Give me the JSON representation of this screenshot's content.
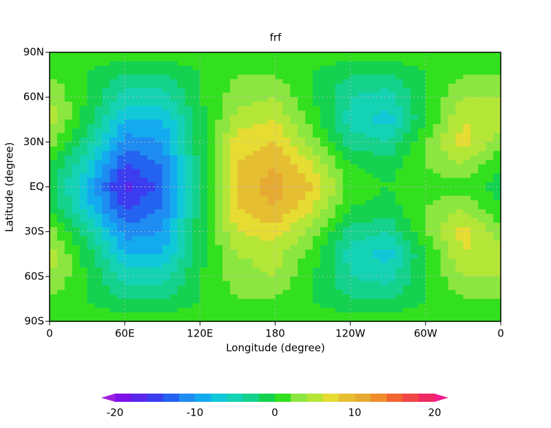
{
  "chart_data": {
    "type": "contour",
    "title": "frf",
    "x_label": "Longitude (degree)",
    "y_label": "Latitude (degree)",
    "x": [
      0,
      30,
      60,
      90,
      120,
      150,
      180,
      210,
      240,
      270,
      300,
      330,
      360
    ],
    "y": [
      90,
      75,
      60,
      45,
      30,
      15,
      0,
      -15,
      -30,
      -45,
      -60,
      -75,
      -90
    ],
    "z": [
      [
        1,
        1,
        1,
        1,
        1,
        1,
        1,
        1,
        1,
        1,
        1,
        1,
        1
      ],
      [
        2,
        0,
        -2,
        -2,
        0,
        2,
        2,
        0,
        -2,
        -2,
        0,
        2,
        2
      ],
      [
        4,
        0,
        -5,
        -5,
        0,
        3,
        4,
        0,
        -4,
        -5,
        0,
        4,
        4
      ],
      [
        5,
        -1,
        -8,
        -8,
        -1,
        5,
        6,
        1,
        -5,
        -7,
        0,
        6,
        5
      ],
      [
        3,
        -3,
        -11,
        -10,
        -1,
        7,
        8,
        3,
        -3,
        -4,
        2,
        7,
        3
      ],
      [
        0,
        -6,
        -14,
        -12,
        -1,
        8,
        10,
        6,
        0,
        -1,
        2,
        4,
        0
      ],
      [
        -1,
        -8,
        -17,
        -13,
        -1,
        9,
        11,
        8,
        1,
        0,
        1,
        1,
        -1
      ],
      [
        0,
        -7,
        -14,
        -12,
        -1,
        8,
        10,
        6,
        0,
        -1,
        2,
        4,
        0
      ],
      [
        3,
        -3,
        -11,
        -10,
        -1,
        6,
        7,
        3,
        -3,
        -4,
        2,
        7,
        3
      ],
      [
        5,
        -1,
        -8,
        -8,
        -1,
        4,
        5,
        1,
        -5,
        -7,
        0,
        6,
        5
      ],
      [
        4,
        0,
        -5,
        -5,
        0,
        3,
        4,
        0,
        -4,
        -5,
        0,
        4,
        4
      ],
      [
        2,
        0,
        -2,
        -2,
        0,
        2,
        2,
        0,
        -2,
        -2,
        0,
        2,
        2
      ],
      [
        1,
        1,
        1,
        1,
        1,
        1,
        1,
        1,
        1,
        1,
        1,
        1,
        1
      ]
    ],
    "xlim": [
      0,
      360
    ],
    "ylim": [
      -90,
      90
    ],
    "xticks": [
      0,
      {
        "value": 60,
        "label": "60E"
      },
      {
        "value": 120,
        "label": "120E"
      },
      180,
      {
        "value": 240,
        "label": "120W"
      },
      {
        "value": 300,
        "label": "60W"
      },
      {
        "value": 360,
        "label": "0"
      }
    ],
    "yticks": [
      {
        "value": -90,
        "label": "90S"
      },
      {
        "value": -60,
        "label": "60S"
      },
      {
        "value": -30,
        "label": "30S"
      },
      {
        "value": 0,
        "label": "EQ"
      },
      {
        "value": 30,
        "label": "30N"
      },
      {
        "value": 60,
        "label": "60N"
      },
      {
        "value": 90,
        "label": "90N"
      }
    ],
    "grid": true,
    "colorbar": {
      "levels": [
        -20,
        -18,
        -16,
        -14,
        -12,
        -10,
        -8,
        -6,
        -4,
        -2,
        0,
        2,
        4,
        6,
        8,
        10,
        12,
        14,
        16,
        18,
        20
      ],
      "colors": [
        "#a01ee0",
        "#7c12e6",
        "#5a26ea",
        "#3c3cf0",
        "#2462f0",
        "#1e8cf0",
        "#14aaf0",
        "#10c8d8",
        "#14d2b4",
        "#14d28c",
        "#14d250",
        "#32e01e",
        "#8ce640",
        "#b4e638",
        "#e6dc32",
        "#e6be32",
        "#e6aa32",
        "#f08c2c",
        "#f06432",
        "#f04646",
        "#f02864",
        "#f01e8c"
      ],
      "ticks": [
        -20,
        -10,
        0,
        10,
        20
      ]
    }
  }
}
